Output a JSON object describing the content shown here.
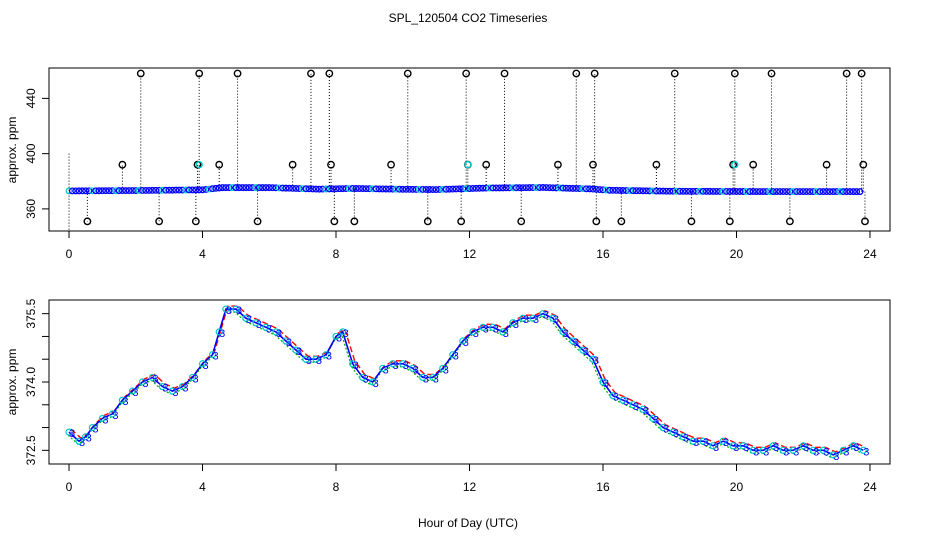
{
  "title": "SPL_120504  CO2 Timeseries",
  "xlabel": "Hour of Day (UTC)",
  "colors": {
    "axis": "#000000",
    "primary": "#0000ff",
    "secondary": "#00cccc",
    "run1": "#ff0000",
    "run2": "#00aa00",
    "run3": "#0000ff"
  },
  "chart_data": [
    {
      "type": "scatter",
      "ylabel": "approx. ppm",
      "xlim": [
        -0.6,
        24.6
      ],
      "ylim": [
        344,
        462
      ],
      "xticks": [
        0,
        4,
        8,
        12,
        16,
        20,
        24
      ],
      "yticks": [
        360,
        400,
        440
      ],
      "grid": false,
      "baseline": [
        [
          0.0,
          373.0
        ],
        [
          2.0,
          373.3
        ],
        [
          4.0,
          373.8
        ],
        [
          4.6,
          375.4
        ],
        [
          6.0,
          375.4
        ],
        [
          7.5,
          374.3
        ],
        [
          8.5,
          374.8
        ],
        [
          10.0,
          374.2
        ],
        [
          11.0,
          374.0
        ],
        [
          12.5,
          375.1
        ],
        [
          14.2,
          375.5
        ],
        [
          15.6,
          374.5
        ],
        [
          16.2,
          373.5
        ],
        [
          18.0,
          372.8
        ],
        [
          20.0,
          372.6
        ],
        [
          23.8,
          372.5
        ]
      ],
      "spikes_high": [
        2.15,
        3.9,
        5.05,
        7.25,
        7.8,
        10.15,
        11.9,
        13.05,
        15.2,
        15.75,
        18.15,
        19.95,
        21.05,
        23.3,
        23.75
      ],
      "spikes_mid": [
        1.6,
        3.85,
        4.5,
        6.7,
        7.85,
        9.65,
        11.95,
        12.5,
        14.65,
        15.7,
        17.6,
        19.9,
        20.5,
        22.7,
        23.8
      ],
      "spikes_low": [
        0.55,
        2.7,
        3.8,
        5.65,
        7.95,
        8.55,
        10.75,
        11.75,
        13.55,
        15.8,
        16.55,
        18.65,
        19.8,
        21.6,
        23.85
      ],
      "high_value": 458,
      "mid_value": 392,
      "low_value": 351
    },
    {
      "type": "line",
      "ylabel": "approx. ppm",
      "xlim": [
        -0.6,
        24.6
      ],
      "ylim": [
        372.2,
        375.8
      ],
      "xticks": [
        0,
        4,
        8,
        12,
        16,
        20,
        24
      ],
      "yticks": [
        372.5,
        373.0,
        373.5,
        374.0,
        374.5,
        375.0,
        375.5
      ],
      "ytick_labels": [
        "372.5",
        "",
        "",
        "374.0",
        "",
        "",
        "375.5"
      ],
      "grid": false,
      "point_label": "3",
      "series": [
        {
          "name": "",
          "x": [
            0.0,
            0.3,
            0.5,
            0.7,
            1.0,
            1.3,
            1.6,
            1.9,
            2.2,
            2.5,
            2.8,
            3.1,
            3.4,
            3.7,
            4.0,
            4.3,
            4.5,
            4.7,
            5.0,
            5.3,
            5.6,
            5.9,
            6.2,
            6.5,
            6.8,
            7.1,
            7.4,
            7.7,
            8.0,
            8.2,
            8.5,
            8.8,
            9.1,
            9.4,
            9.7,
            10.0,
            10.3,
            10.6,
            10.9,
            11.2,
            11.5,
            11.8,
            12.1,
            12.4,
            12.7,
            13.0,
            13.3,
            13.6,
            13.9,
            14.2,
            14.5,
            14.8,
            15.1,
            15.4,
            15.7,
            16.0,
            16.3,
            16.6,
            16.9,
            17.2,
            17.5,
            17.8,
            18.1,
            18.4,
            18.7,
            19.0,
            19.3,
            19.6,
            19.9,
            20.2,
            20.5,
            20.8,
            21.1,
            21.4,
            21.7,
            22.0,
            22.3,
            22.6,
            22.9,
            23.2,
            23.5,
            23.8
          ],
          "y": [
            372.9,
            372.7,
            372.8,
            373.0,
            373.2,
            373.3,
            373.6,
            373.8,
            374.0,
            374.1,
            373.9,
            373.8,
            373.9,
            374.1,
            374.4,
            374.6,
            375.1,
            375.6,
            375.6,
            375.4,
            375.3,
            375.2,
            375.1,
            374.9,
            374.7,
            374.5,
            374.5,
            374.6,
            375.0,
            375.1,
            374.4,
            374.1,
            374.0,
            374.3,
            374.4,
            374.4,
            374.3,
            374.1,
            374.1,
            374.3,
            374.6,
            374.9,
            375.1,
            375.2,
            375.2,
            375.1,
            375.3,
            375.4,
            375.4,
            375.5,
            375.4,
            375.1,
            374.9,
            374.7,
            374.5,
            374.0,
            373.7,
            373.6,
            373.5,
            373.4,
            373.2,
            373.0,
            372.9,
            372.8,
            372.7,
            372.7,
            372.6,
            372.7,
            372.6,
            372.6,
            372.5,
            372.5,
            372.6,
            372.5,
            372.5,
            372.6,
            372.5,
            372.5,
            372.4,
            372.5,
            372.6,
            372.5
          ]
        }
      ]
    }
  ]
}
